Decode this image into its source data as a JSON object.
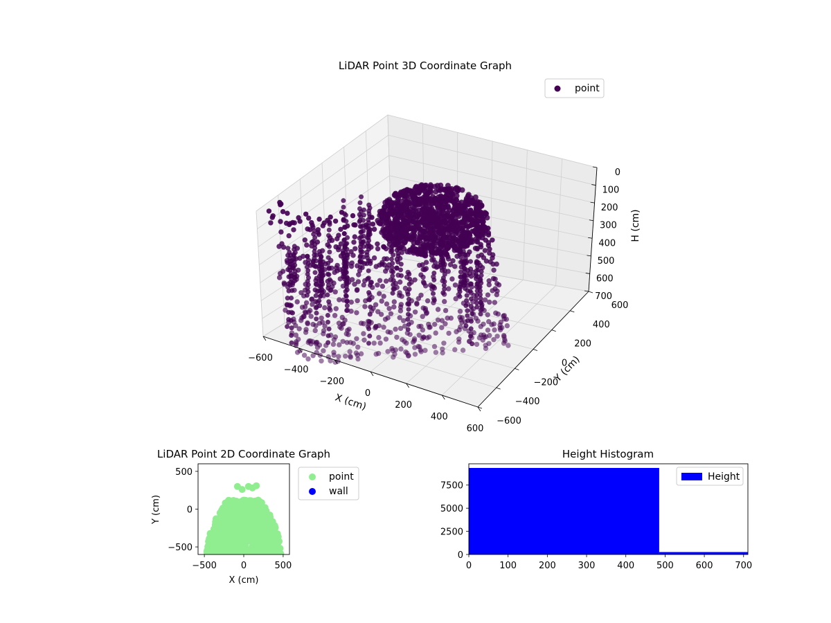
{
  "chart_data": [
    {
      "type": "scatter",
      "projection": "3d",
      "title": "LiDAR Point 3D Coordinate Graph",
      "xlabel": "X (cm)",
      "ylabel": "Y (cm)",
      "zlabel": "H (cm)",
      "xticks": [
        "−600",
        "−400",
        "−200",
        "0",
        "200",
        "400",
        "600"
      ],
      "yticks": [
        "−600",
        "−400",
        "−200",
        "0",
        "200",
        "400",
        "600"
      ],
      "zticks": [
        "0",
        "100",
        "200",
        "300",
        "400",
        "500",
        "600",
        "700"
      ],
      "xlim": [
        -600,
        600
      ],
      "ylim": [
        -600,
        600
      ],
      "zlim": [
        700,
        0
      ],
      "grid": true,
      "legend": {
        "placement": "top-right",
        "entries": [
          {
            "label": "point",
            "color": "#440154"
          }
        ]
      },
      "series": [
        {
          "name": "point",
          "color": "#440154"
        }
      ]
    },
    {
      "type": "scatter",
      "title": "LiDAR Point 2D Coordinate Graph",
      "xlabel": "X (cm)",
      "ylabel": "Y (cm)",
      "xticks": [
        "−500",
        "0",
        "500"
      ],
      "yticks": [
        "−500",
        "0",
        "500"
      ],
      "xlim": [
        -580,
        580
      ],
      "ylim": [
        -600,
        600
      ],
      "legend": {
        "placement": "outside-right",
        "entries": [
          {
            "label": "point",
            "color": "#90ee90"
          },
          {
            "label": "wall",
            "color": "#0000ff"
          }
        ]
      },
      "series": [
        {
          "name": "point",
          "color": "#90ee90"
        },
        {
          "name": "wall",
          "color": "#0000ff"
        }
      ]
    },
    {
      "type": "bar",
      "title": "Height Histogram",
      "xticks": [
        "0",
        "100",
        "200",
        "300",
        "400",
        "500",
        "600",
        "700"
      ],
      "yticks": [
        "0",
        "2500",
        "5000",
        "7500"
      ],
      "xlim": [
        0,
        711
      ],
      "ylim": [
        0,
        9800
      ],
      "bins": [
        {
          "start": 0,
          "end": 485,
          "count": 9350
        },
        {
          "start": 485,
          "end": 711,
          "count": 260
        }
      ],
      "legend": {
        "placement": "top-right",
        "entries": [
          {
            "label": "Height",
            "color": "#0000ff"
          }
        ]
      },
      "series": [
        {
          "name": "Height",
          "color": "#0000ff"
        }
      ]
    }
  ]
}
